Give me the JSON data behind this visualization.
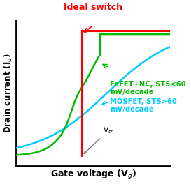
{
  "title": "Ideal switch",
  "title_color": "#FF0000",
  "xlabel": "Gate voltage (V$_g$)",
  "ylabel": "Drain current (I$_d$)",
  "bg_color": "#FFFFFF",
  "ideal_color": "#FF0000",
  "fefet_color": "#00BB00",
  "mosfet_color": "#00CCFF",
  "vth": 0.42,
  "x_range": [
    -0.05,
    1.05
  ],
  "y_range": [
    -0.08,
    1.08
  ],
  "fefet_label": "FeFET+NC, STS<60\nmV/decade",
  "mosfet_label": "MOSFET, STS>60\nmV/decade",
  "vth_label": "V$_{th}$"
}
